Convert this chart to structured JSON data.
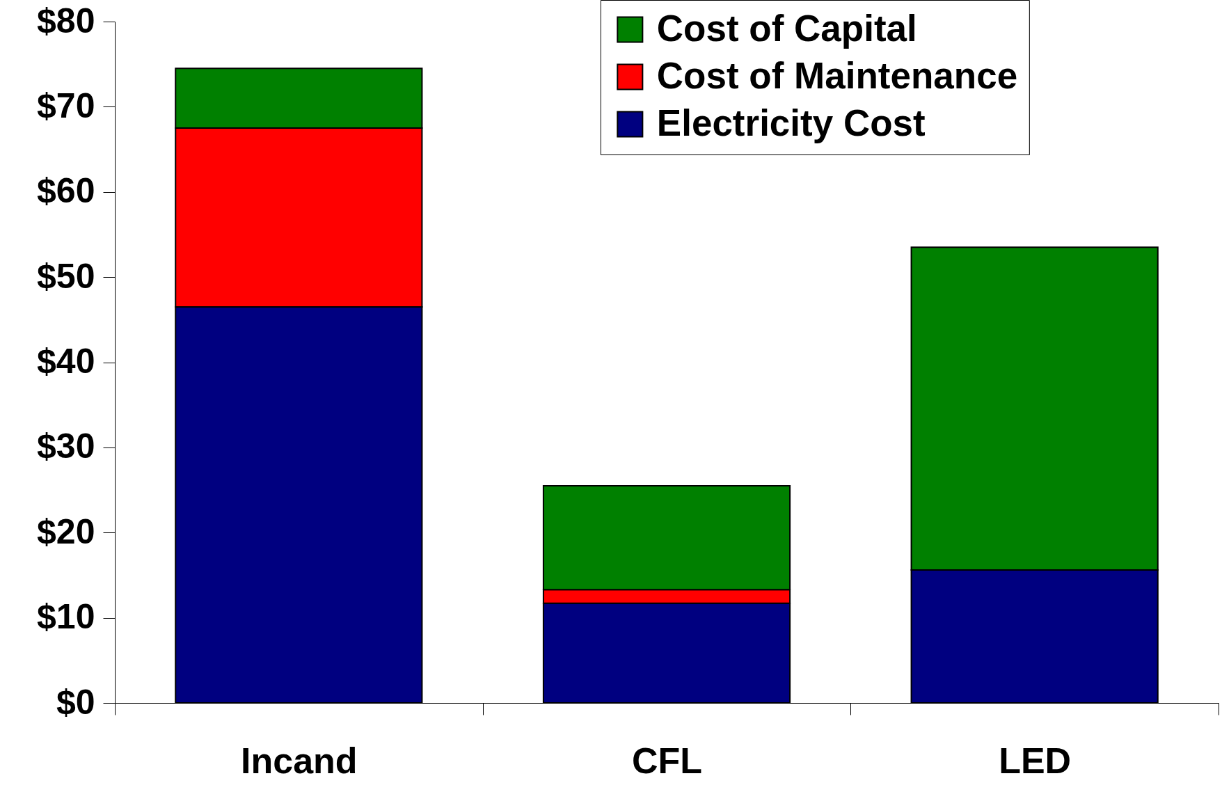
{
  "chart_data": {
    "type": "bar",
    "stacked": true,
    "categories": [
      "Incand",
      "CFL",
      "LED"
    ],
    "series": [
      {
        "name": "Electricity Cost",
        "color": "#000080",
        "values": [
          46.5,
          11.7,
          15.6
        ]
      },
      {
        "name": "Cost of Maintenance",
        "color": "#ff0000",
        "values": [
          21.0,
          1.6,
          null
        ]
      },
      {
        "name": "Cost of Capital",
        "color": "#008000",
        "values": [
          7.0,
          12.2,
          37.9
        ]
      }
    ],
    "ylim": [
      0,
      80
    ],
    "yticks": [
      {
        "value": 0,
        "label": "$0"
      },
      {
        "value": 10,
        "label": "$10"
      },
      {
        "value": 20,
        "label": "$20"
      },
      {
        "value": 30,
        "label": "$30"
      },
      {
        "value": 40,
        "label": "$40"
      },
      {
        "value": 50,
        "label": "$50"
      },
      {
        "value": 60,
        "label": "$60"
      },
      {
        "value": 70,
        "label": "$70"
      },
      {
        "value": 80,
        "label": "$80"
      }
    ],
    "legend": "top right"
  }
}
